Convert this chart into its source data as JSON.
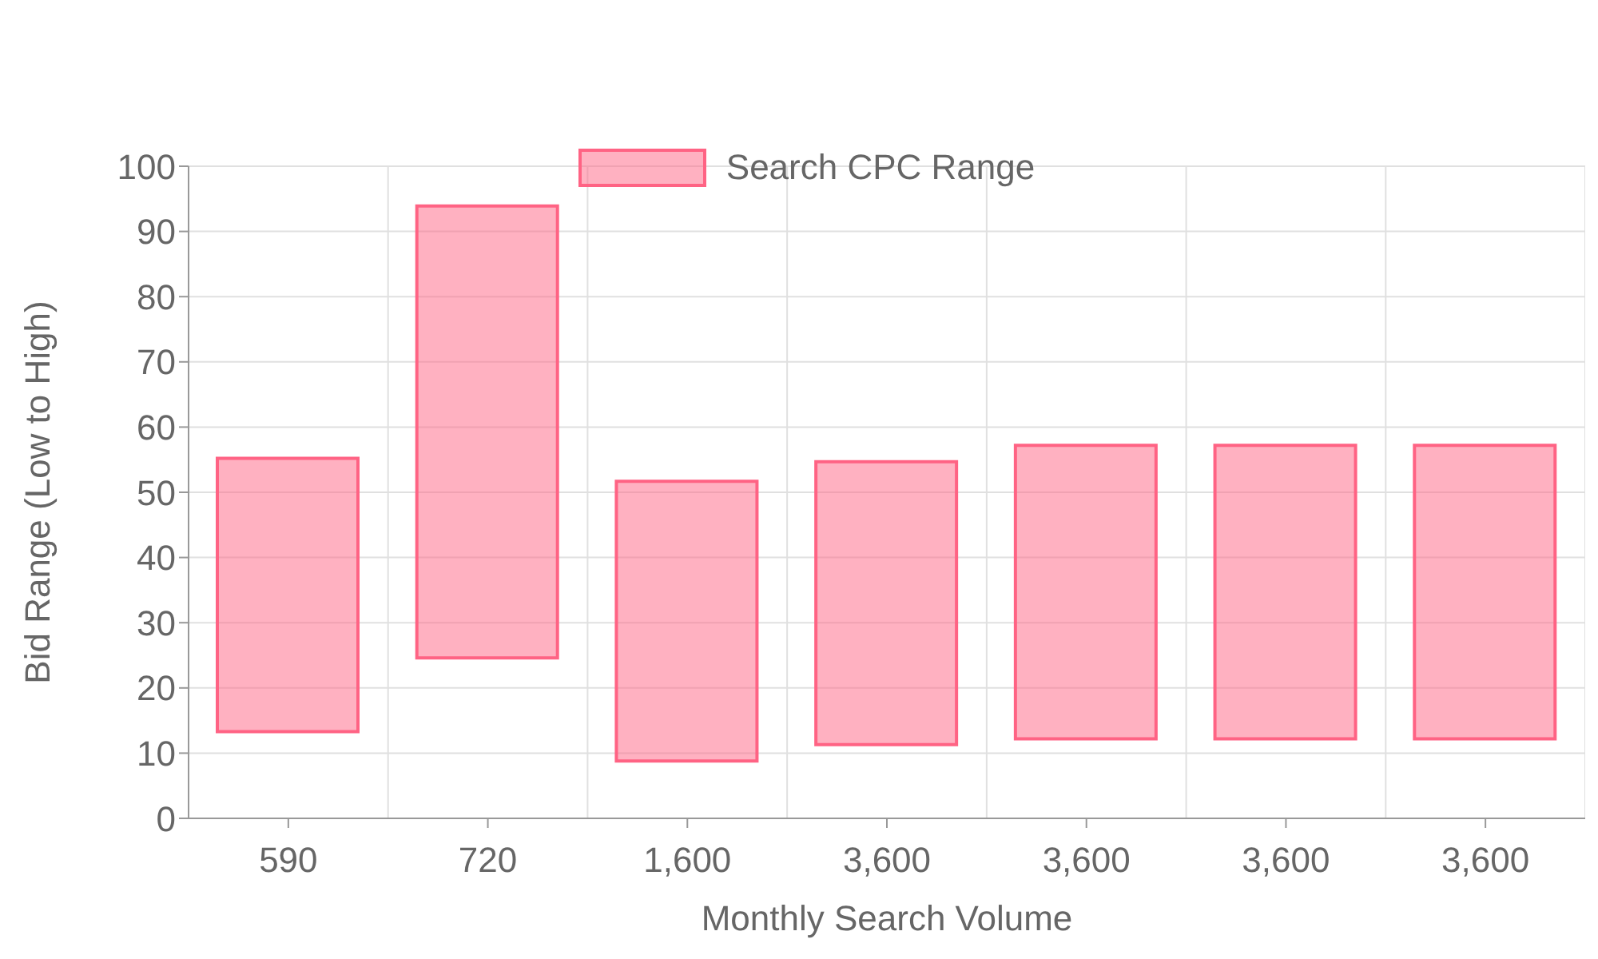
{
  "chart_data": {
    "type": "bar",
    "xlabel": "Monthly Search Volume",
    "ylabel": "Bid Range (Low to High)",
    "categories": [
      "590",
      "720",
      "1,600",
      "3,600",
      "3,600",
      "3,600",
      "3,600"
    ],
    "series": [
      {
        "name": "Search CPC Range",
        "color": "#ff6384",
        "base": [
          13.3,
          24.6,
          8.8,
          11.3,
          12.2,
          12.2,
          12.2
        ],
        "values": [
          41.9,
          69.3,
          42.9,
          43.4,
          45,
          45,
          45
        ]
      }
    ],
    "ylim": [
      0,
      100
    ],
    "yticks": [
      0,
      10,
      20,
      30,
      40,
      50,
      60,
      70,
      80,
      90,
      100
    ],
    "grid": true,
    "legend": "top"
  }
}
